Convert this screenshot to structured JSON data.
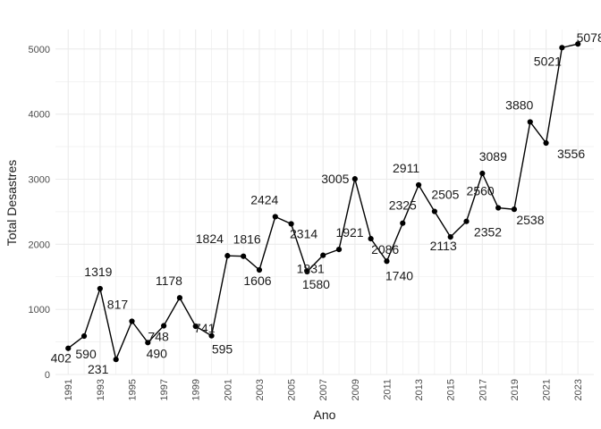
{
  "chart_data": {
    "type": "line",
    "title": "",
    "xlabel": "Ano",
    "ylabel": "Total Desastres",
    "x": [
      1991,
      1992,
      1993,
      1994,
      1995,
      1996,
      1997,
      1998,
      1999,
      2000,
      2001,
      2002,
      2003,
      2004,
      2005,
      2006,
      2007,
      2008,
      2009,
      2010,
      2011,
      2012,
      2013,
      2014,
      2015,
      2016,
      2017,
      2018,
      2019,
      2020,
      2021,
      2022,
      2023
    ],
    "series": [
      {
        "values": [
          402,
          590,
          1319,
          231,
          817,
          490,
          748,
          1178,
          741,
          595,
          1824,
          1816,
          1606,
          2424,
          2314,
          1580,
          1831,
          1921,
          3005,
          2086,
          1740,
          2325,
          2911,
          2505,
          2113,
          2352,
          3089,
          2560,
          2538,
          3880,
          3556,
          5021,
          5078
        ],
        "color": "#000000"
      }
    ],
    "x_ticks": [
      1991,
      1993,
      1995,
      1997,
      1999,
      2001,
      2003,
      2005,
      2007,
      2009,
      2011,
      2013,
      2015,
      2017,
      2019,
      2021,
      2023
    ],
    "y_ticks": [
      0,
      1000,
      2000,
      3000,
      4000,
      5000
    ],
    "xlim": [
      1990.2,
      2024.0
    ],
    "ylim": [
      0,
      5300
    ],
    "grid": true,
    "legend": "none",
    "background": "#ffffff",
    "grid_color": "#ebebeb"
  }
}
